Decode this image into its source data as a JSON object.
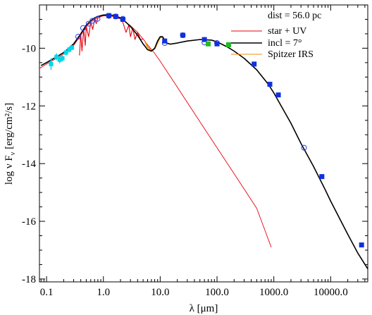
{
  "chart_data": {
    "type": "scatter",
    "title": "",
    "xlabel": "λ [μm]",
    "ylabel": "log ν F",
    "ylabel_sub": "ν",
    "ylabel_units": "[erg/cm²/s]",
    "xscale": "log",
    "xlim": [
      0.075,
      45000
    ],
    "ylim": [
      -18.1,
      -8.5
    ],
    "grid": false,
    "legend_position": "top-right",
    "x_ticks": [
      {
        "value": 0.1,
        "label": "0.1"
      },
      {
        "value": 1,
        "label": "1.0"
      },
      {
        "value": 10,
        "label": "10.0"
      },
      {
        "value": 100,
        "label": "100.0"
      },
      {
        "value": 1000,
        "label": "1000.0"
      },
      {
        "value": 10000,
        "label": "10000.0"
      }
    ],
    "y_ticks": [
      {
        "value": -10,
        "label": "-10"
      },
      {
        "value": -12,
        "label": "-12"
      },
      {
        "value": -14,
        "label": "-14"
      },
      {
        "value": -16,
        "label": "-16"
      },
      {
        "value": -18,
        "label": "-18"
      }
    ],
    "legend": {
      "header": "dist = 56.0 pc",
      "entries": [
        {
          "label": "star + UV",
          "color": "#e8000b"
        },
        {
          "label": "incl = 7°",
          "color": "#000000"
        },
        {
          "label": "Spitzer IRS",
          "color": "#f08c00"
        }
      ]
    },
    "series": [
      {
        "name": "star + UV",
        "kind": "line",
        "color": "#e8000b",
        "points": [
          [
            0.075,
            -10.7
          ],
          [
            0.1,
            -10.55
          ],
          [
            0.15,
            -10.35
          ],
          [
            0.2,
            -10.2
          ],
          [
            0.3,
            -9.9
          ],
          [
            0.4,
            -9.55
          ],
          [
            0.5,
            -9.25
          ],
          [
            0.6,
            -9.1
          ],
          [
            0.7,
            -9.0
          ],
          [
            0.8,
            -8.95
          ],
          [
            0.9,
            -8.9
          ],
          [
            1.0,
            -8.88
          ],
          [
            1.2,
            -8.87
          ],
          [
            1.5,
            -8.9
          ],
          [
            2.0,
            -8.98
          ],
          [
            2.5,
            -9.1
          ],
          [
            3.0,
            -9.22
          ],
          [
            4.0,
            -9.45
          ],
          [
            5.0,
            -9.68
          ],
          [
            6.0,
            -9.88
          ],
          [
            8.0,
            -10.18
          ],
          [
            10.0,
            -10.45
          ],
          [
            20.0,
            -11.35
          ],
          [
            50.0,
            -12.55
          ],
          [
            100.0,
            -13.45
          ],
          [
            200.0,
            -14.35
          ],
          [
            500.0,
            -15.55
          ],
          [
            900.0,
            -16.9
          ]
        ]
      },
      {
        "name": "star + UV (detailed photospheric spectrum)",
        "kind": "line",
        "color": "#e8000b",
        "points": [
          [
            0.38,
            -10.25
          ],
          [
            0.4,
            -9.5
          ],
          [
            0.42,
            -10.1
          ],
          [
            0.45,
            -9.35
          ],
          [
            0.48,
            -9.9
          ],
          [
            0.5,
            -9.25
          ],
          [
            0.55,
            -9.6
          ],
          [
            0.6,
            -9.1
          ],
          [
            0.65,
            -9.35
          ],
          [
            0.7,
            -9.0
          ],
          [
            0.75,
            -9.15
          ],
          [
            0.8,
            -8.95
          ],
          [
            0.9,
            -8.9
          ],
          [
            1.0,
            -8.87
          ],
          [
            1.2,
            -8.87
          ],
          [
            1.5,
            -8.9
          ],
          [
            1.8,
            -8.95
          ],
          [
            2.0,
            -8.98
          ],
          [
            2.2,
            -9.1
          ],
          [
            2.5,
            -9.45
          ],
          [
            2.8,
            -9.2
          ],
          [
            3.0,
            -9.6
          ],
          [
            3.3,
            -9.3
          ],
          [
            3.6,
            -9.7
          ],
          [
            4.0,
            -9.45
          ],
          [
            4.5,
            -9.7
          ],
          [
            5.0,
            -9.68
          ]
        ]
      },
      {
        "name": "incl = 7°",
        "kind": "line",
        "color": "#000000",
        "points": [
          [
            0.08,
            -10.6
          ],
          [
            0.1,
            -10.5
          ],
          [
            0.15,
            -10.3
          ],
          [
            0.2,
            -10.15
          ],
          [
            0.3,
            -9.85
          ],
          [
            0.4,
            -9.5
          ],
          [
            0.5,
            -9.2
          ],
          [
            0.6,
            -9.05
          ],
          [
            0.7,
            -8.95
          ],
          [
            0.8,
            -8.9
          ],
          [
            1.0,
            -8.85
          ],
          [
            1.2,
            -8.84
          ],
          [
            1.5,
            -8.86
          ],
          [
            2.0,
            -8.95
          ],
          [
            2.5,
            -9.1
          ],
          [
            3.0,
            -9.25
          ],
          [
            4.0,
            -9.55
          ],
          [
            5.0,
            -9.85
          ],
          [
            6.0,
            -10.05
          ],
          [
            7.0,
            -10.1
          ],
          [
            8.0,
            -10.0
          ],
          [
            9.0,
            -9.75
          ],
          [
            10.0,
            -9.6
          ],
          [
            11.0,
            -9.6
          ],
          [
            12.0,
            -9.72
          ],
          [
            13.0,
            -9.82
          ],
          [
            15.0,
            -9.86
          ],
          [
            20.0,
            -9.82
          ],
          [
            30.0,
            -9.75
          ],
          [
            50.0,
            -9.7
          ],
          [
            80.0,
            -9.72
          ],
          [
            100.0,
            -9.78
          ],
          [
            150.0,
            -9.95
          ],
          [
            200.0,
            -10.1
          ],
          [
            300.0,
            -10.35
          ],
          [
            500.0,
            -10.75
          ],
          [
            800.0,
            -11.25
          ],
          [
            1000.0,
            -11.55
          ],
          [
            2000.0,
            -12.6
          ],
          [
            3000.0,
            -13.3
          ],
          [
            5000.0,
            -14.1
          ],
          [
            8000.0,
            -14.9
          ],
          [
            10000.0,
            -15.3
          ],
          [
            20000.0,
            -16.45
          ],
          [
            30000.0,
            -17.1
          ],
          [
            45000.0,
            -17.65
          ]
        ]
      },
      {
        "name": "Spitzer IRS",
        "kind": "line",
        "color": "#f08c00",
        "points": [
          [
            5.5,
            -9.8
          ],
          [
            6.0,
            -9.95
          ],
          [
            7.0,
            -10.1
          ],
          [
            8.0,
            -10.02
          ],
          [
            9.0,
            -9.8
          ],
          [
            10.0,
            -9.62
          ],
          [
            11.0,
            -9.62
          ],
          [
            12.0,
            -9.72
          ],
          [
            13.0,
            -9.82
          ],
          [
            14.0,
            -9.85
          ]
        ]
      },
      {
        "name": "UV spectrum",
        "kind": "errorbar",
        "color": "#00d8e8",
        "points": [
          [
            0.12,
            -10.55,
            0.2
          ],
          [
            0.15,
            -10.3,
            0.12
          ],
          [
            0.17,
            -10.4,
            0.12
          ],
          [
            0.19,
            -10.35,
            0.1
          ],
          [
            0.22,
            -10.15,
            0.1
          ],
          [
            0.25,
            -10.05,
            0.1
          ],
          [
            0.28,
            -9.98,
            0.08
          ]
        ]
      },
      {
        "name": "photometry (open)",
        "kind": "open-circle",
        "color": "#2a3fe0",
        "points": [
          [
            0.36,
            -9.6
          ],
          [
            0.44,
            -9.3
          ],
          [
            0.55,
            -9.15
          ],
          [
            0.64,
            -9.05
          ],
          [
            0.79,
            -8.98
          ],
          [
            1.25,
            -8.88
          ],
          [
            1.65,
            -8.9
          ],
          [
            2.2,
            -8.98
          ],
          [
            12.0,
            -9.82
          ],
          [
            25.0,
            -9.55
          ],
          [
            60.0,
            -9.8
          ],
          [
            100.0,
            -9.82
          ],
          [
            3400.0,
            -13.45
          ]
        ]
      },
      {
        "name": "photometry (filled)",
        "kind": "filled",
        "color": "#1030e0",
        "points": [
          [
            1.25,
            -8.87
          ],
          [
            1.65,
            -8.9
          ],
          [
            2.2,
            -9.0
          ],
          [
            12.0,
            -9.75
          ],
          [
            25.0,
            -9.55
          ],
          [
            60.0,
            -9.7
          ],
          [
            100.0,
            -9.85
          ],
          [
            160.0,
            -9.88
          ],
          [
            450.0,
            -10.55
          ],
          [
            850.0,
            -11.25
          ],
          [
            1200.0,
            -11.62
          ],
          [
            7000.0,
            -14.45
          ],
          [
            35000.0,
            -16.82
          ]
        ]
      },
      {
        "name": "far-IR (green)",
        "kind": "filled",
        "color": "#22bb22",
        "points": [
          [
            70.0,
            -9.85
          ],
          [
            160.0,
            -9.88
          ]
        ]
      }
    ]
  }
}
